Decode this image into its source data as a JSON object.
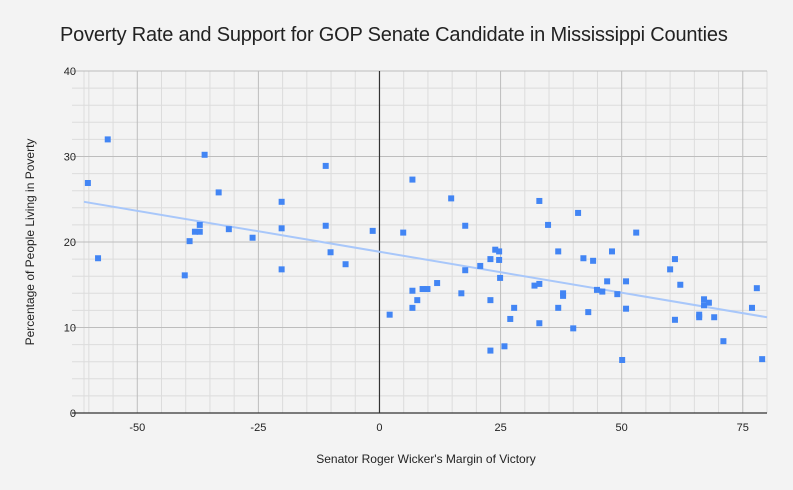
{
  "chart_data": {
    "type": "scatter",
    "title": "Poverty Rate and Support for GOP Senate Candidate in Mississippi Counties",
    "xlabel": "Senator Roger Wicker's Margin of Victory",
    "ylabel": "Percentage of People Living in Poverty",
    "xlim": [
      -61,
      80
    ],
    "ylim": [
      0,
      40
    ],
    "x_ticks": [
      -50,
      -25,
      0,
      25,
      50,
      75
    ],
    "x_tick_labels": [
      "-50",
      "-25",
      "0",
      "25",
      "50",
      "75"
    ],
    "y_ticks": [
      0,
      10,
      20,
      30,
      40
    ],
    "y_tick_labels": [
      "0",
      "10",
      "20",
      "30",
      "40"
    ],
    "grid": true,
    "legend": "none",
    "colors": {
      "points": "#4285f4",
      "trendline": "#a8c7fa",
      "background": "#f3f3f3"
    },
    "trendline": {
      "type": "linear",
      "x": [
        -61,
        80
      ],
      "y": [
        24.7,
        11.2
      ]
    },
    "series": [
      {
        "name": "Counties",
        "points": [
          [
            -60.2,
            26.9
          ],
          [
            -56.1,
            32.0
          ],
          [
            -58.1,
            18.1
          ],
          [
            -36.1,
            30.2
          ],
          [
            -33.2,
            25.8
          ],
          [
            -40.2,
            16.1
          ],
          [
            -39.2,
            20.1
          ],
          [
            -38.1,
            21.2
          ],
          [
            -37.1,
            21.2
          ],
          [
            -37.1,
            22.0
          ],
          [
            -31.1,
            21.5
          ],
          [
            -26.2,
            20.5
          ],
          [
            -20.2,
            24.7
          ],
          [
            -20.2,
            21.6
          ],
          [
            -20.2,
            16.8
          ],
          [
            -11.1,
            28.9
          ],
          [
            -11.1,
            21.9
          ],
          [
            -10.1,
            18.8
          ],
          [
            -7.0,
            17.4
          ],
          [
            -1.4,
            21.3
          ],
          [
            2.1,
            11.5
          ],
          [
            4.9,
            21.1
          ],
          [
            6.8,
            27.3
          ],
          [
            6.8,
            14.3
          ],
          [
            6.8,
            12.3
          ],
          [
            7.8,
            13.2
          ],
          [
            8.9,
            14.5
          ],
          [
            9.9,
            14.5
          ],
          [
            11.9,
            15.2
          ],
          [
            14.8,
            25.1
          ],
          [
            16.9,
            14.0
          ],
          [
            17.7,
            21.9
          ],
          [
            17.7,
            16.7
          ],
          [
            20.8,
            17.2
          ],
          [
            22.9,
            18.0
          ],
          [
            22.9,
            13.2
          ],
          [
            22.9,
            7.3
          ],
          [
            23.9,
            19.1
          ],
          [
            24.7,
            18.9
          ],
          [
            24.7,
            17.9
          ],
          [
            24.9,
            15.8
          ],
          [
            25.8,
            7.8
          ],
          [
            27.0,
            11.0
          ],
          [
            27.8,
            12.3
          ],
          [
            32.0,
            14.9
          ],
          [
            33.0,
            24.8
          ],
          [
            33.0,
            15.1
          ],
          [
            33.0,
            10.5
          ],
          [
            34.8,
            22.0
          ],
          [
            36.9,
            18.9
          ],
          [
            36.9,
            12.3
          ],
          [
            37.9,
            14.0
          ],
          [
            37.9,
            13.7
          ],
          [
            40.0,
            9.9
          ],
          [
            41.0,
            23.4
          ],
          [
            42.1,
            18.1
          ],
          [
            43.1,
            11.8
          ],
          [
            44.1,
            17.8
          ],
          [
            44.9,
            14.4
          ],
          [
            46.0,
            14.2
          ],
          [
            47.0,
            15.4
          ],
          [
            48.0,
            18.9
          ],
          [
            49.1,
            13.9
          ],
          [
            50.1,
            6.2
          ],
          [
            50.9,
            15.4
          ],
          [
            50.9,
            12.2
          ],
          [
            53.0,
            21.1
          ],
          [
            60.0,
            16.8
          ],
          [
            61.0,
            18.0
          ],
          [
            61.0,
            10.9
          ],
          [
            62.1,
            15.0
          ],
          [
            66.0,
            11.5
          ],
          [
            66.0,
            11.2
          ],
          [
            67.0,
            13.3
          ],
          [
            67.0,
            12.6
          ],
          [
            68.0,
            12.9
          ],
          [
            69.1,
            11.2
          ],
          [
            71.0,
            8.4
          ],
          [
            76.9,
            12.3
          ],
          [
            77.9,
            14.6
          ],
          [
            79.0,
            6.3
          ]
        ]
      }
    ]
  }
}
